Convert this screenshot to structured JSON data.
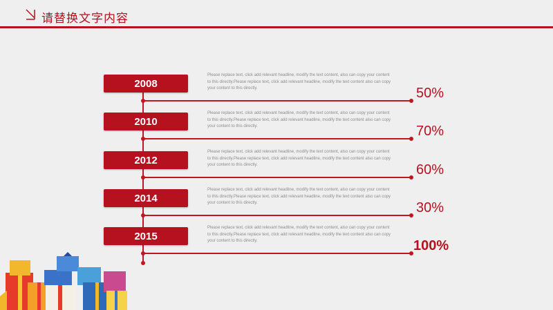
{
  "header": {
    "title": "请替换文字内容",
    "accent_color": "#b5111e",
    "icon": "slash-corner-icon"
  },
  "timeline": [
    {
      "year": "2008",
      "description": "Please replace text, click add relevant headline, modify the text content, also can copy your content to this directly.Please replace text, click add relevant headline, modify the text content also can copy your content to this directly.",
      "percent": "50%",
      "emphasis": false
    },
    {
      "year": "2010",
      "description": "Please replace text, click add relevant headline, modify the text content, also can copy your content to this directly.Please replace text, click add relevant headline, modify the text content also can copy your content to this directly.",
      "percent": "70%",
      "emphasis": false
    },
    {
      "year": "2012",
      "description": "Please replace text, click add relevant headline, modify the text content, also can copy your content to this directly.Please replace text, click add relevant headline, modify the text content also can copy your content to this directly.",
      "percent": "60%",
      "emphasis": false
    },
    {
      "year": "2014",
      "description": "Please replace text, click add relevant headline, modify the text content, also can copy your content to this directly.Please replace text, click add relevant headline, modify the text content also can copy your content to this directly.",
      "percent": "30%",
      "emphasis": false
    },
    {
      "year": "2015",
      "description": "Please replace text, click add relevant headline, modify the text content, also can copy your content to this directly.Please replace text, click add relevant headline, modify the text content also can copy your content to this directly.",
      "percent": "100%",
      "emphasis": true
    }
  ],
  "decoration": {
    "image": "gift-boxes-icon"
  }
}
